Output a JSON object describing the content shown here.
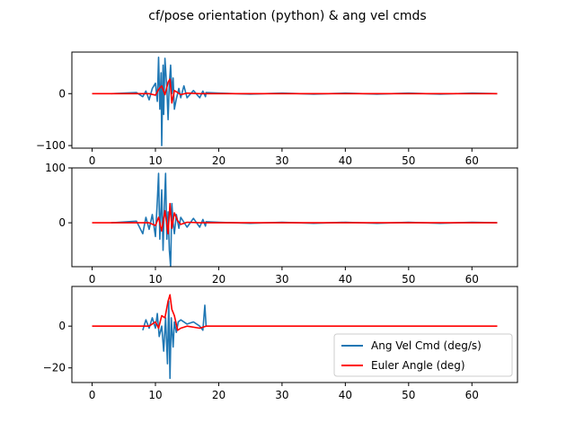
{
  "chart_data": {
    "type": "line",
    "title": "cf/pose orientation (python) & ang vel cmds",
    "legend": {
      "placement": "lower-right",
      "entries": [
        "Ang Vel Cmd (deg/s)",
        "Euler Angle (deg)"
      ]
    },
    "colors": {
      "ang_vel": "#1f77b4",
      "euler": "#ff0000"
    },
    "subplots": [
      {
        "xlim": [
          -3.2,
          67.2
        ],
        "ylim": [
          -105,
          80
        ],
        "xticks": [
          0,
          10,
          20,
          30,
          40,
          50,
          60
        ],
        "yticks": [
          -100,
          0
        ],
        "ytick_labels": [
          "−100",
          "0"
        ],
        "series": [
          {
            "name": "Ang Vel Cmd (deg/s)",
            "x": [
              3,
              7,
              8,
              8.5,
              9,
              9.5,
              10,
              10.3,
              10.5,
              10.7,
              10.9,
              11.0,
              11.2,
              11.3,
              11.5,
              11.8,
              12.0,
              12.2,
              12.4,
              12.6,
              12.8,
              13.0,
              13.3,
              13.7,
              14.0,
              14.5,
              15.0,
              16.0,
              17.0,
              17.5,
              17.9,
              18.0,
              20,
              25,
              30,
              35,
              40,
              45,
              50,
              55,
              60,
              64
            ],
            "y": [
              0,
              2,
              -6,
              5,
              -12,
              10,
              20,
              -15,
              70,
              -30,
              40,
              -100,
              55,
              -40,
              68,
              10,
              -50,
              20,
              55,
              0,
              30,
              -30,
              -10,
              10,
              -8,
              15,
              -8,
              6,
              -8,
              5,
              -6,
              2,
              1,
              -1,
              1,
              -1,
              1,
              -1,
              1,
              -1,
              1,
              0
            ]
          },
          {
            "name": "Euler Angle (deg)",
            "x": [
              0,
              9,
              10,
              10.5,
              11,
              11.5,
              12,
              12.3,
              12.6,
              13,
              13.5,
              14,
              15,
              17,
              20,
              64
            ],
            "y": [
              0,
              0,
              -3,
              8,
              15,
              -2,
              22,
              28,
              -18,
              6,
              2,
              -2,
              1,
              0,
              0,
              0
            ]
          }
        ]
      },
      {
        "xlim": [
          -3.2,
          67.2
        ],
        "ylim": [
          -80,
          100
        ],
        "xticks": [
          0,
          10,
          20,
          30,
          40,
          50,
          60
        ],
        "yticks": [
          0,
          100
        ],
        "ytick_labels": [
          "0",
          "100"
        ],
        "series": [
          {
            "name": "Ang Vel Cmd (deg/s)",
            "x": [
              3,
              7,
              8,
              8.5,
              9,
              9.5,
              10,
              10.3,
              10.5,
              10.7,
              11.0,
              11.2,
              11.4,
              11.6,
              11.8,
              12.0,
              12.2,
              12.4,
              12.6,
              12.8,
              13.0,
              13.3,
              13.7,
              14.0,
              15.0,
              16.0,
              17.0,
              17.5,
              17.9,
              18.0,
              20,
              25,
              30,
              35,
              40,
              45,
              50,
              55,
              60,
              64
            ],
            "y": [
              0,
              3,
              -20,
              10,
              -12,
              15,
              -25,
              40,
              90,
              -30,
              60,
              -50,
              30,
              90,
              -30,
              20,
              -50,
              -80,
              35,
              0,
              -20,
              15,
              -10,
              10,
              -8,
              8,
              -8,
              6,
              -6,
              2,
              1,
              -1,
              1,
              -1,
              1,
              -1,
              1,
              -1,
              1,
              0
            ]
          },
          {
            "name": "Euler Angle (deg)",
            "x": [
              0,
              9,
              10,
              10.5,
              11,
              11.5,
              12,
              12.3,
              12.6,
              13,
              13.5,
              14,
              15,
              17,
              20,
              64
            ],
            "y": [
              0,
              0,
              -5,
              10,
              -15,
              22,
              -20,
              35,
              -10,
              18,
              4,
              -3,
              1,
              0,
              0,
              0
            ]
          }
        ]
      },
      {
        "xlim": [
          -3.2,
          67.2
        ],
        "ylim": [
          -27,
          19
        ],
        "xticks": [
          0,
          10,
          20,
          30,
          40,
          50,
          60
        ],
        "yticks": [
          -20,
          0
        ],
        "ytick_labels": [
          "−20",
          "0"
        ],
        "series": [
          {
            "name": "Ang Vel Cmd (deg/s)",
            "x": [
              8,
              8.5,
              9,
              9.5,
              10,
              10.3,
              10.6,
              11.0,
              11.3,
              11.6,
              11.9,
              12.1,
              12.3,
              12.5,
              12.8,
              13.0,
              13.3,
              13.6,
              14.0,
              15.0,
              16.0,
              17.0,
              17.5,
              17.8,
              18.0
            ],
            "y": [
              -2,
              3,
              -1,
              4,
              -1,
              6,
              -5,
              0,
              -12,
              4,
              -18,
              12,
              -25,
              4,
              -10,
              2,
              -3,
              2,
              3,
              1,
              2,
              0,
              -2,
              10,
              0
            ]
          },
          {
            "name": "Euler Angle (deg)",
            "x": [
              0,
              9,
              10,
              10.5,
              11,
              11.5,
              12,
              12.3,
              12.6,
              13,
              13.5,
              14,
              15,
              17,
              18,
              20,
              64
            ],
            "y": [
              0,
              0,
              2,
              -1,
              5,
              4,
              12,
              15,
              8,
              5,
              -2,
              -1,
              0,
              -1,
              0,
              0,
              0
            ]
          }
        ]
      }
    ]
  }
}
